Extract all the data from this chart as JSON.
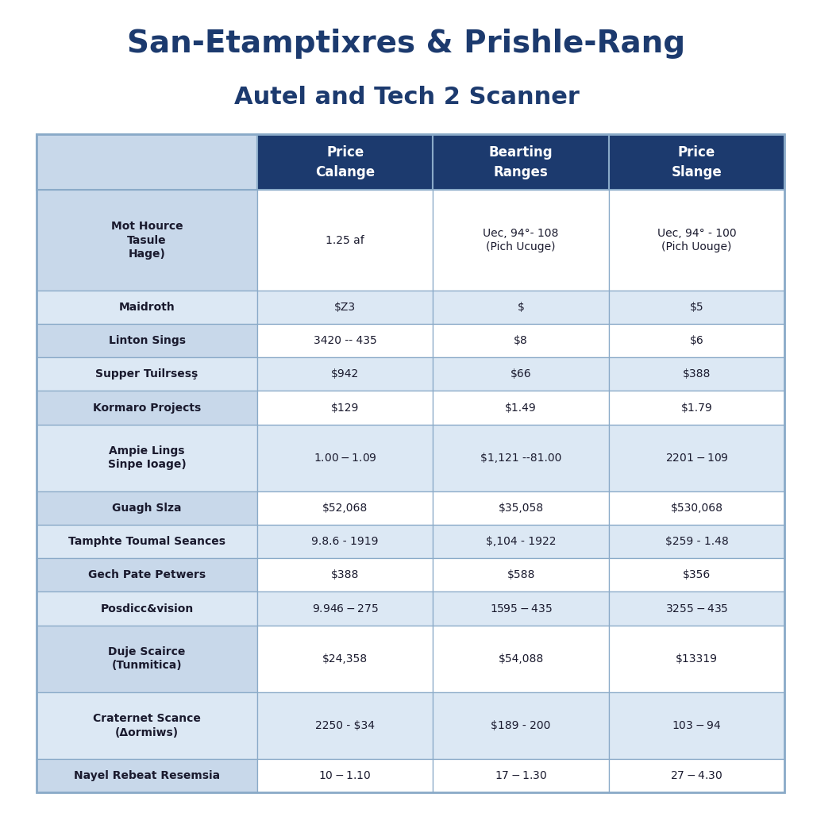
{
  "title_line1": "San-Etamptixres & Prishle-Rang",
  "title_line2": "Autel and Tech 2 Scanner",
  "col_headers": [
    "Price\nCalange",
    "Bearting\nRanges",
    "Price\nSlange"
  ],
  "row_labels": [
    "Mot Hource\nTasule\nHage)",
    "Maidroth",
    "Linton Sings",
    "Supper Tuilrsesş",
    "Kormaro Projects",
    "Ampie Lings\nSinpe Ioage)",
    "Guagh Slza",
    "Tamphte Toumal Seances",
    "Gech Pate Petwers",
    "Posdicc&vision",
    "Duje Scairce\n(Tunmitica)",
    "Craternet Scance\n(Δormiws)",
    "Nayel Rebeat Resemsia"
  ],
  "cell_data": [
    [
      "1.25 af",
      "Uec, 94°- 108\n(Pich Ucuge)",
      "Uec, 94° - 100\n(Pich Uouge)"
    ],
    [
      "$Z3",
      "$",
      "$5"
    ],
    [
      "3420 -- 435",
      "$8",
      "$6"
    ],
    [
      "$942",
      "$66",
      "$388"
    ],
    [
      "$129",
      "$1.49",
      "$1.79"
    ],
    [
      "$1.00 - $1.09",
      "$1,121 --81.00",
      "$2201 - $109"
    ],
    [
      "$52,068",
      "$35,058",
      "$530,068"
    ],
    [
      "9.8.6 - 1919",
      "$,104 - 1922",
      "$259 - 1.48"
    ],
    [
      "$388",
      "$588",
      "$356"
    ],
    [
      "$9.946 - $275",
      "$1595 - $435",
      "$3255 - $435"
    ],
    [
      "$24,358",
      "$54,088",
      "$13319"
    ],
    [
      "2250 - $34",
      "$189 - 200",
      "$103 - $94"
    ],
    [
      "$10- $1.10",
      "$17- $1.30",
      "$27-$4.30"
    ]
  ],
  "row_heights": [
    3.0,
    1.0,
    1.0,
    1.0,
    1.0,
    2.0,
    1.0,
    1.0,
    1.0,
    1.0,
    2.0,
    2.0,
    1.0
  ],
  "header_bg": "#1c3a6e",
  "header_text_color": "#ffffff",
  "row_bg_A": "#c8d8ea",
  "row_bg_B": "#dce8f4",
  "cell_bg_A": "#ffffff",
  "cell_bg_B": "#dce8f4",
  "border_color": "#8aaac8",
  "title1_color": "#1c3a6e",
  "title2_color": "#1c3a6e",
  "bg_color": "#ffffff",
  "label_text_color": "#1a1a2e",
  "cell_text_color": "#1a1a2e"
}
